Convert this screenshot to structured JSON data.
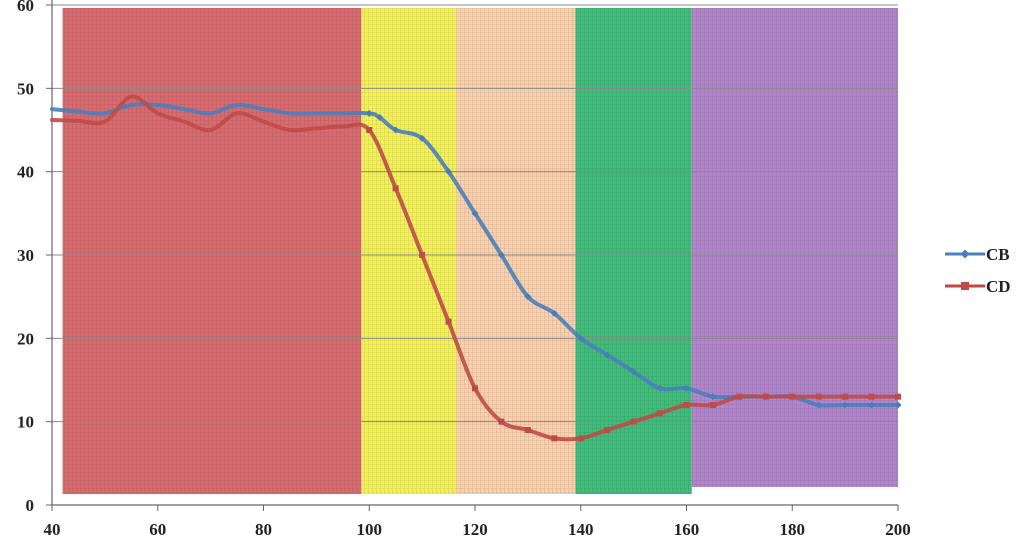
{
  "chart_data": {
    "type": "line",
    "title": "",
    "xlabel": "",
    "ylabel": "",
    "xlim": [
      40,
      200
    ],
    "ylim": [
      0,
      60
    ],
    "x_ticks": [
      "40",
      "60",
      "80",
      "100",
      "120",
      "140",
      "160",
      "180",
      "200"
    ],
    "y_ticks": [
      "0",
      "10",
      "20",
      "30",
      "40",
      "50",
      "60"
    ],
    "grid": "horizontal",
    "legend_position": "right",
    "background_regions": [
      {
        "x_start": 42,
        "x_end": 98.5,
        "color": "#d96b6f"
      },
      {
        "x_start": 98.5,
        "x_end": 116.5,
        "color": "#f4f05a"
      },
      {
        "x_start": 116.5,
        "x_end": 139,
        "color": "#f9cfac"
      },
      {
        "x_start": 139,
        "x_end": 161,
        "color": "#3fbd7a"
      },
      {
        "x_start": 161,
        "x_end": 200,
        "color": "#b286cc"
      }
    ],
    "series": [
      {
        "name": "CB",
        "color": "#4a7ebb",
        "marker": "diamond",
        "x": [
          40,
          45,
          50,
          55,
          60,
          65,
          70,
          75,
          80,
          85,
          90,
          95,
          100,
          102,
          105,
          110,
          115,
          120,
          125,
          130,
          135,
          140,
          145,
          150,
          155,
          160,
          165,
          170,
          175,
          180,
          185,
          190,
          195,
          200
        ],
        "y": [
          47.5,
          47.2,
          47,
          48,
          48,
          47.5,
          47,
          48,
          47.5,
          47,
          47,
          47,
          47,
          46.5,
          45,
          44,
          40,
          35,
          30,
          25,
          23,
          20,
          18,
          16,
          14,
          14,
          13,
          13,
          13,
          13,
          12,
          12,
          12,
          12
        ]
      },
      {
        "name": "CD",
        "color": "#be4b48",
        "marker": "square",
        "x": [
          40,
          45,
          50,
          55,
          60,
          65,
          70,
          75,
          80,
          85,
          90,
          95,
          100,
          105,
          110,
          115,
          120,
          125,
          130,
          135,
          140,
          145,
          150,
          155,
          160,
          165,
          170,
          175,
          180,
          185,
          190,
          195,
          200
        ],
        "y": [
          46.2,
          46.1,
          46,
          49,
          47,
          46,
          45,
          47,
          46,
          45,
          45.2,
          45.4,
          45,
          38,
          30,
          22,
          14,
          10,
          9,
          8,
          8,
          9,
          10,
          11,
          12,
          12,
          13,
          13,
          13,
          13,
          13,
          13,
          13
        ]
      }
    ]
  }
}
